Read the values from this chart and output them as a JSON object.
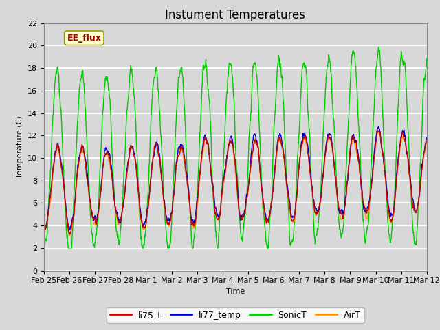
{
  "title": "Instument Temperatures",
  "xlabel": "Time",
  "ylabel": "Temperature (C)",
  "ylim": [
    0,
    22
  ],
  "background_color": "#d8d8d8",
  "plot_bg_color": "#d8d8d8",
  "grid_color": "#ffffff",
  "series": {
    "li75_t": {
      "color": "#cc0000",
      "lw": 1.0
    },
    "li77_temp": {
      "color": "#0000cc",
      "lw": 1.0
    },
    "SonicT": {
      "color": "#00cc00",
      "lw": 1.0
    },
    "AirT": {
      "color": "#ff9900",
      "lw": 1.0
    }
  },
  "xtick_labels": [
    "Feb 25",
    "Feb 26",
    "Feb 27",
    "Feb 28",
    "Mar 1",
    "Mar 2",
    "Mar 3",
    "Mar 4",
    "Mar 5",
    "Mar 6",
    "Mar 7",
    "Mar 8",
    "Mar 9",
    "Mar 10",
    "Mar 11",
    "Mar 12"
  ],
  "ytick_labels": [
    0,
    2,
    4,
    6,
    8,
    10,
    12,
    14,
    16,
    18,
    20,
    22
  ],
  "annotation_text": "EE_flux",
  "annotation_color": "#990000",
  "annotation_bg": "#ffffcc",
  "title_fontsize": 12,
  "tick_fontsize": 8,
  "legend_fontsize": 9
}
